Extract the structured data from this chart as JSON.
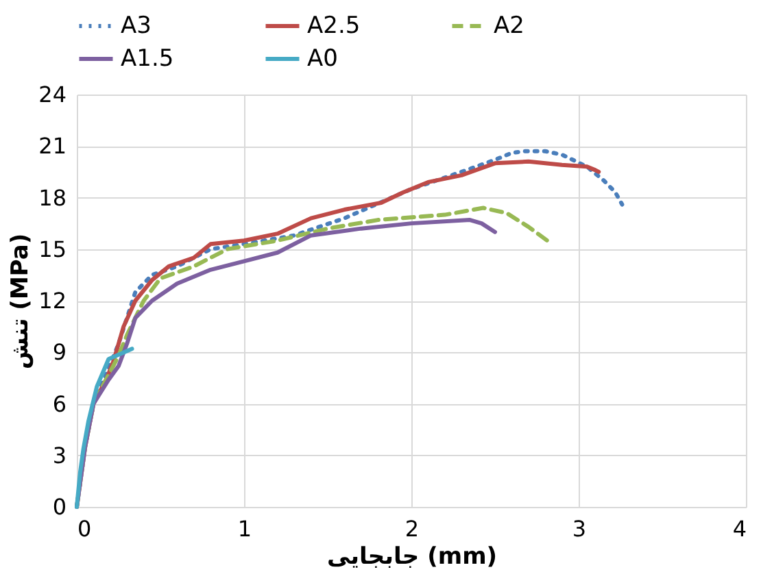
{
  "chart_data": {
    "type": "line",
    "xlabel": "جابجایی (mm)",
    "ylabel": "تنش (MPa)",
    "xlim": [
      0,
      4
    ],
    "xticks": [
      0,
      1,
      2,
      3,
      4
    ],
    "ylim": [
      0,
      24
    ],
    "yticks": [
      0,
      3,
      6,
      9,
      12,
      15,
      18,
      21,
      24
    ],
    "grid": true,
    "legend": "top",
    "marker": "none",
    "series": [
      {
        "name": "A3",
        "color": "#4a7ebb",
        "line_style": "dotted",
        "x": [
          0,
          0.05,
          0.1,
          0.18,
          0.25,
          0.3,
          0.35,
          0.45,
          0.6,
          0.8,
          1.0,
          1.3,
          1.6,
          2.0,
          2.3,
          2.5,
          2.6,
          2.68,
          2.8,
          2.9,
          3.05,
          3.15,
          3.22,
          3.26
        ],
        "values": [
          0,
          3.5,
          6,
          7.8,
          9.5,
          11,
          12.5,
          13.5,
          14,
          15,
          15.3,
          15.8,
          16.8,
          18.5,
          19.5,
          20.2,
          20.6,
          20.7,
          20.7,
          20.5,
          19.8,
          19.0,
          18.3,
          17.6
        ]
      },
      {
        "name": "A2.5",
        "color": "#be4b48",
        "line_style": "solid",
        "x": [
          0,
          0.05,
          0.1,
          0.18,
          0.22,
          0.28,
          0.35,
          0.45,
          0.55,
          0.7,
          0.8,
          1.0,
          1.2,
          1.4,
          1.6,
          1.82,
          1.95,
          2.1,
          2.3,
          2.5,
          2.7,
          2.9,
          3.05,
          3.1,
          3.12
        ],
        "values": [
          0,
          3.5,
          6,
          7.5,
          8.5,
          10.5,
          12,
          13.2,
          14,
          14.5,
          15.3,
          15.5,
          15.9,
          16.8,
          17.3,
          17.7,
          18.3,
          18.9,
          19.3,
          20.0,
          20.1,
          19.9,
          19.8,
          19.6,
          19.5
        ]
      },
      {
        "name": "A2",
        "color": "#98b954",
        "line_style": "dashed",
        "x": [
          0,
          0.05,
          0.1,
          0.18,
          0.25,
          0.3,
          0.4,
          0.5,
          0.7,
          0.9,
          1.2,
          1.5,
          1.8,
          2.2,
          2.43,
          2.57,
          2.7,
          2.84
        ],
        "values": [
          0,
          3.5,
          6,
          7.5,
          8.8,
          10,
          12,
          13.3,
          14,
          15,
          15.5,
          16.2,
          16.7,
          17,
          17.4,
          17.1,
          16.3,
          15.3
        ]
      },
      {
        "name": "A1.5",
        "color": "#7d60a0",
        "line_style": "solid",
        "x": [
          0,
          0.05,
          0.1,
          0.19,
          0.25,
          0.3,
          0.35,
          0.45,
          0.6,
          0.8,
          1.0,
          1.2,
          1.4,
          1.7,
          2.0,
          2.35,
          2.42,
          2.5
        ],
        "values": [
          0,
          3.5,
          6,
          7.4,
          8.2,
          9.5,
          11,
          12,
          13,
          13.8,
          14.3,
          14.8,
          15.8,
          16.2,
          16.5,
          16.7,
          16.5,
          16.0
        ]
      },
      {
        "name": "A0",
        "color": "#46aac5",
        "line_style": "solid",
        "x": [
          0,
          0.02,
          0.04,
          0.07,
          0.12,
          0.19,
          0.26,
          0.33
        ],
        "values": [
          0,
          2,
          3.4,
          5,
          7,
          8.6,
          8.9,
          9.2
        ]
      }
    ]
  }
}
